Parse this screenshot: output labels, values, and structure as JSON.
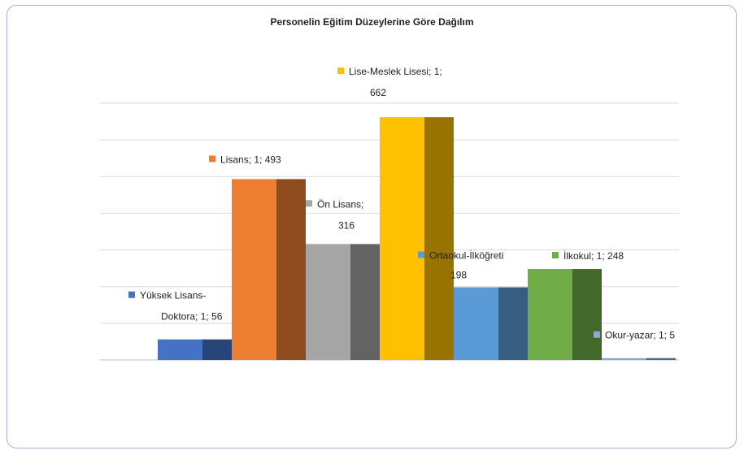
{
  "chart_data": {
    "type": "bar",
    "title": "Personelin Eğitim Düzeylerine Göre Dağılım",
    "xlabel": "",
    "ylabel": "",
    "ylim": [
      0,
      700
    ],
    "grid": true,
    "series": [
      {
        "name": "Yüksek Lisans-Doktora",
        "category": "1",
        "value": 56,
        "color": "#4472c4",
        "label_lines": [
          "Yüksek Lisans-",
          "Doktora; 1; 56"
        ]
      },
      {
        "name": "Lisans",
        "category": "1",
        "value": 493,
        "color": "#ed7d31",
        "label_lines": [
          "Lisans; 1; 493"
        ]
      },
      {
        "name": "Ön Lisans",
        "category": "1",
        "value": 316,
        "color": "#a5a5a5",
        "label_lines": [
          "Ön Lisans;",
          "316"
        ]
      },
      {
        "name": "Lise-Meslek Lisesi",
        "category": "1",
        "value": 662,
        "color": "#ffc000",
        "label_lines": [
          "Lise-Meslek Lisesi; 1;",
          "662"
        ]
      },
      {
        "name": "Ortaokul-İlköğretim",
        "category": "1",
        "value": 198,
        "color": "#5b9bd5",
        "label_lines": [
          "Ortaokul-İlköğreti",
          "198"
        ]
      },
      {
        "name": "İlkokul",
        "category": "1",
        "value": 248,
        "color": "#70ad47",
        "label_lines": [
          "İlkokul; 1; 248"
        ]
      },
      {
        "name": "Okur-yazar",
        "category": "1",
        "value": 5,
        "color": "#8fa8d8",
        "label_lines": [
          "Okur-yazar; 1; 5"
        ]
      }
    ]
  }
}
